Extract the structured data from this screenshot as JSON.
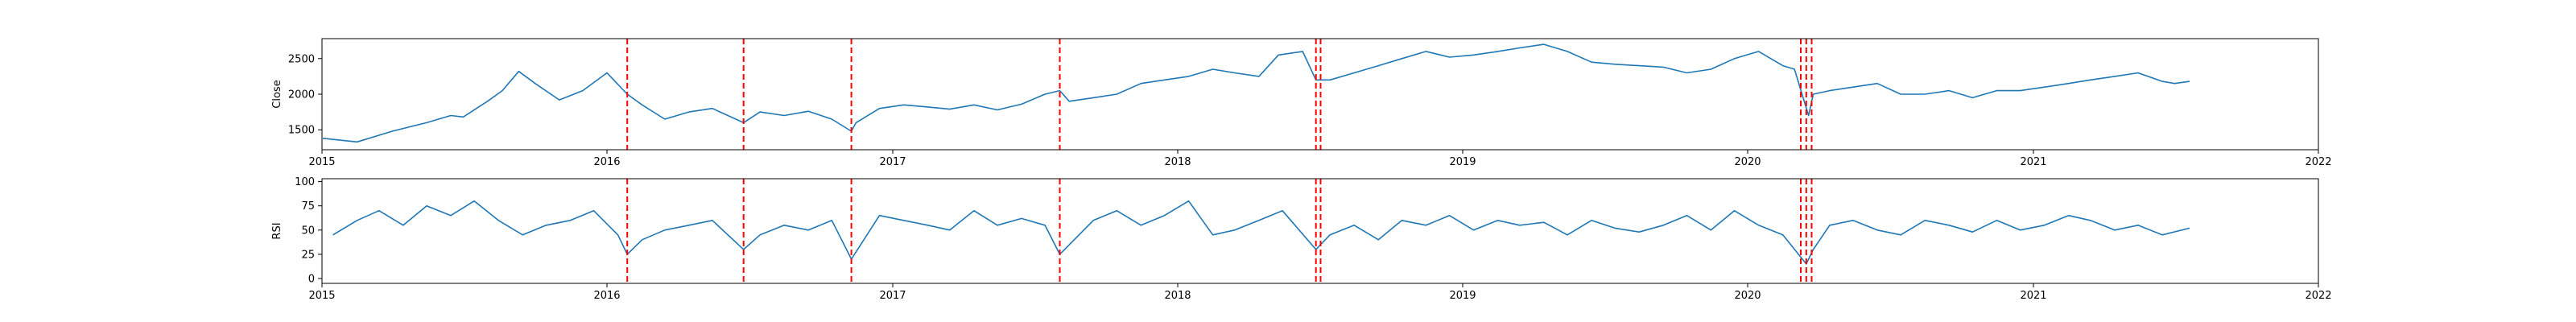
{
  "chart_data": [
    {
      "type": "line",
      "ylabel": "Close",
      "xlim": [
        "2015-01-01",
        "2022-01-01"
      ],
      "ylim": [
        1220,
        2780
      ],
      "x_ticks": [
        "2015",
        "2016",
        "2017",
        "2018",
        "2019",
        "2020",
        "2021",
        "2022"
      ],
      "y_ticks": [
        1500,
        2000,
        2500
      ],
      "grid": false,
      "series": [
        {
          "color": "#1f77b4",
          "x": [
            "2015-01-02",
            "2015-02-15",
            "2015-04-01",
            "2015-05-15",
            "2015-06-15",
            "2015-07-01",
            "2015-08-01",
            "2015-08-20",
            "2015-09-10",
            "2015-10-01",
            "2015-11-01",
            "2015-12-01",
            "2016-01-01",
            "2016-01-27",
            "2016-02-15",
            "2016-03-15",
            "2016-04-15",
            "2016-05-15",
            "2016-06-24",
            "2016-07-15",
            "2016-08-15",
            "2016-09-15",
            "2016-10-15",
            "2016-11-09",
            "2016-11-15",
            "2016-12-15",
            "2017-01-15",
            "2017-02-15",
            "2017-03-15",
            "2017-04-15",
            "2017-05-15",
            "2017-06-15",
            "2017-07-15",
            "2017-08-03",
            "2017-08-15",
            "2017-09-15",
            "2017-10-15",
            "2017-11-15",
            "2017-12-15",
            "2018-01-15",
            "2018-02-15",
            "2018-03-15",
            "2018-04-15",
            "2018-05-10",
            "2018-06-10",
            "2018-06-27",
            "2018-07-15",
            "2018-08-15",
            "2018-09-15",
            "2018-10-15",
            "2018-11-15",
            "2018-12-15",
            "2019-01-15",
            "2019-02-15",
            "2019-03-15",
            "2019-04-15",
            "2019-05-15",
            "2019-06-15",
            "2019-07-15",
            "2019-08-15",
            "2019-09-15",
            "2019-10-15",
            "2019-11-15",
            "2019-12-15",
            "2020-01-15",
            "2020-02-15",
            "2020-03-01",
            "2020-03-12",
            "2020-03-19",
            "2020-03-25",
            "2020-04-15",
            "2020-05-15",
            "2020-06-15",
            "2020-07-15",
            "2020-08-15",
            "2020-09-15",
            "2020-10-15",
            "2020-11-15",
            "2020-12-15",
            "2021-01-15",
            "2021-02-15",
            "2021-03-15",
            "2021-04-15",
            "2021-05-15",
            "2021-06-15",
            "2021-07-01",
            "2021-07-20"
          ],
          "values": [
            1380,
            1330,
            1480,
            1600,
            1700,
            1680,
            1900,
            2050,
            2320,
            2150,
            1920,
            2050,
            2300,
            2000,
            1850,
            1650,
            1750,
            1800,
            1600,
            1750,
            1700,
            1760,
            1650,
            1480,
            1600,
            1800,
            1850,
            1820,
            1790,
            1850,
            1780,
            1860,
            2000,
            2050,
            1900,
            1950,
            2000,
            2150,
            2200,
            2250,
            2350,
            2300,
            2250,
            2550,
            2600,
            2200,
            2200,
            2300,
            2400,
            2500,
            2600,
            2520,
            2550,
            2600,
            2650,
            2700,
            2600,
            2450,
            2420,
            2400,
            2380,
            2300,
            2350,
            2500,
            2600,
            2400,
            2350,
            1950,
            1700,
            2000,
            2050,
            2100,
            2150,
            2000,
            2000,
            2050,
            1950,
            2050,
            2050,
            2100,
            2150,
            2200,
            2250,
            2300,
            2180,
            2150,
            2180
          ]
        }
      ],
      "vlines": {
        "color": "#ff0000",
        "style": "dashed",
        "dates": [
          "2016-01-27",
          "2016-06-24",
          "2016-11-09",
          "2017-08-03",
          "2018-06-27",
          "2018-07-03",
          "2020-03-09",
          "2020-03-16",
          "2020-03-23"
        ]
      }
    },
    {
      "type": "line",
      "ylabel": "RSI",
      "xlim": [
        "2015-01-01",
        "2022-01-01"
      ],
      "ylim": [
        -5,
        103
      ],
      "x_ticks": [
        "2015",
        "2016",
        "2017",
        "2018",
        "2019",
        "2020",
        "2021",
        "2022"
      ],
      "y_ticks": [
        0,
        25,
        50,
        75,
        100
      ],
      "grid": false,
      "series": [
        {
          "color": "#1f77b4",
          "x": [
            "2015-01-15",
            "2015-02-15",
            "2015-03-15",
            "2015-04-15",
            "2015-05-15",
            "2015-06-15",
            "2015-07-15",
            "2015-08-15",
            "2015-09-15",
            "2015-10-15",
            "2015-11-15",
            "2015-12-15",
            "2016-01-15",
            "2016-01-27",
            "2016-02-15",
            "2016-03-15",
            "2016-04-15",
            "2016-05-15",
            "2016-06-24",
            "2016-07-15",
            "2016-08-15",
            "2016-09-15",
            "2016-10-15",
            "2016-11-09",
            "2016-12-15",
            "2017-01-15",
            "2017-02-15",
            "2017-03-15",
            "2017-04-15",
            "2017-05-15",
            "2017-06-15",
            "2017-07-15",
            "2017-08-03",
            "2017-09-15",
            "2017-10-15",
            "2017-11-15",
            "2017-12-15",
            "2018-01-15",
            "2018-02-15",
            "2018-03-15",
            "2018-04-15",
            "2018-05-15",
            "2018-06-27",
            "2018-07-15",
            "2018-08-15",
            "2018-09-15",
            "2018-10-15",
            "2018-11-15",
            "2018-12-15",
            "2019-01-15",
            "2019-02-15",
            "2019-03-15",
            "2019-04-15",
            "2019-05-15",
            "2019-06-15",
            "2019-07-15",
            "2019-08-15",
            "2019-09-15",
            "2019-10-15",
            "2019-11-15",
            "2019-12-15",
            "2020-01-15",
            "2020-02-15",
            "2020-03-16",
            "2020-03-25",
            "2020-04-15",
            "2020-05-15",
            "2020-06-15",
            "2020-07-15",
            "2020-08-15",
            "2020-09-15",
            "2020-10-15",
            "2020-11-15",
            "2020-12-15",
            "2021-01-15",
            "2021-02-15",
            "2021-03-15",
            "2021-04-15",
            "2021-05-15",
            "2021-06-15",
            "2021-07-20"
          ],
          "values": [
            45,
            60,
            70,
            55,
            75,
            65,
            80,
            60,
            45,
            55,
            60,
            70,
            45,
            25,
            40,
            50,
            55,
            60,
            30,
            45,
            55,
            50,
            60,
            20,
            65,
            60,
            55,
            50,
            70,
            55,
            62,
            55,
            25,
            60,
            70,
            55,
            65,
            80,
            45,
            50,
            60,
            70,
            30,
            45,
            55,
            40,
            60,
            55,
            65,
            50,
            60,
            55,
            58,
            45,
            60,
            52,
            48,
            55,
            65,
            50,
            70,
            55,
            45,
            15,
            30,
            55,
            60,
            50,
            45,
            60,
            55,
            48,
            60,
            50,
            55,
            65,
            60,
            50,
            55,
            45,
            52
          ]
        }
      ],
      "vlines": {
        "color": "#ff0000",
        "style": "dashed",
        "dates": [
          "2016-01-27",
          "2016-06-24",
          "2016-11-09",
          "2017-08-03",
          "2018-06-27",
          "2018-07-03",
          "2020-03-09",
          "2020-03-16",
          "2020-03-23"
        ]
      }
    }
  ]
}
